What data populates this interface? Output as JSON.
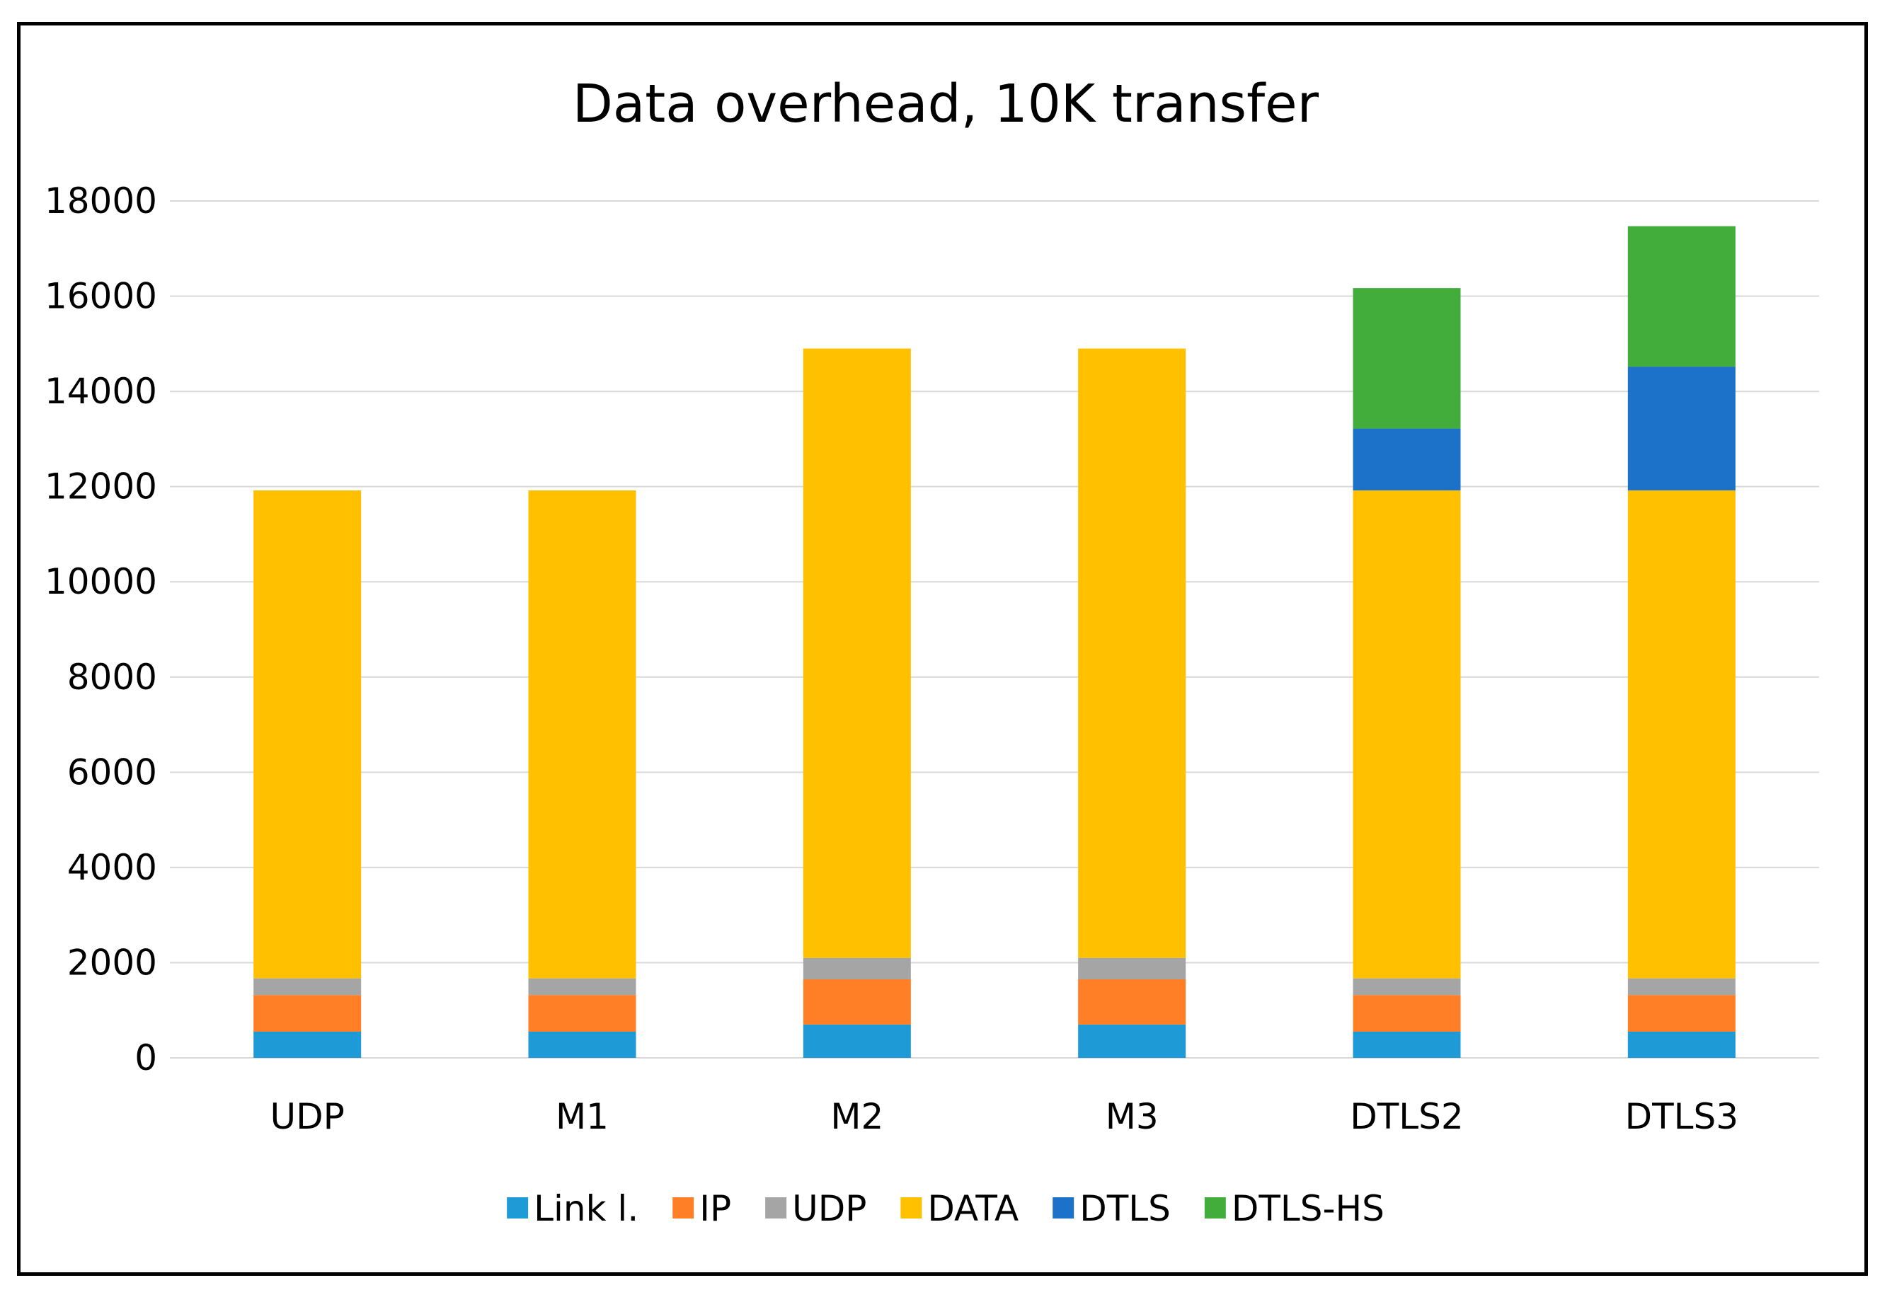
{
  "chart_data": {
    "type": "bar",
    "stacked": true,
    "title": "Data overhead, 10K transfer",
    "xlabel": "",
    "ylabel": "",
    "ylim": [
      0,
      18000
    ],
    "yticks": [
      0,
      2000,
      4000,
      6000,
      8000,
      10000,
      12000,
      14000,
      16000,
      18000
    ],
    "grid": true,
    "legend_position": "bottom",
    "categories": [
      "UDP",
      "M1",
      "M2",
      "M3",
      "DTLS2",
      "DTLS3"
    ],
    "series": [
      {
        "name": "Link l.",
        "color": "#1E9BD7",
        "values": [
          550,
          550,
          700,
          700,
          550,
          550
        ]
      },
      {
        "name": "IP",
        "color": "#FF7F27",
        "values": [
          770,
          770,
          950,
          950,
          770,
          770
        ]
      },
      {
        "name": "UDP",
        "color": "#A5A5A5",
        "values": [
          350,
          350,
          450,
          450,
          350,
          350
        ]
      },
      {
        "name": "DATA",
        "color": "#FFC000",
        "values": [
          10250,
          10250,
          12800,
          12800,
          10250,
          10250
        ]
      },
      {
        "name": "DTLS",
        "color": "#1B72C8",
        "values": [
          0,
          0,
          0,
          0,
          1300,
          2600
        ]
      },
      {
        "name": "DTLS-HS",
        "color": "#43AD3B",
        "values": [
          0,
          0,
          0,
          0,
          2950,
          2950
        ]
      }
    ]
  }
}
